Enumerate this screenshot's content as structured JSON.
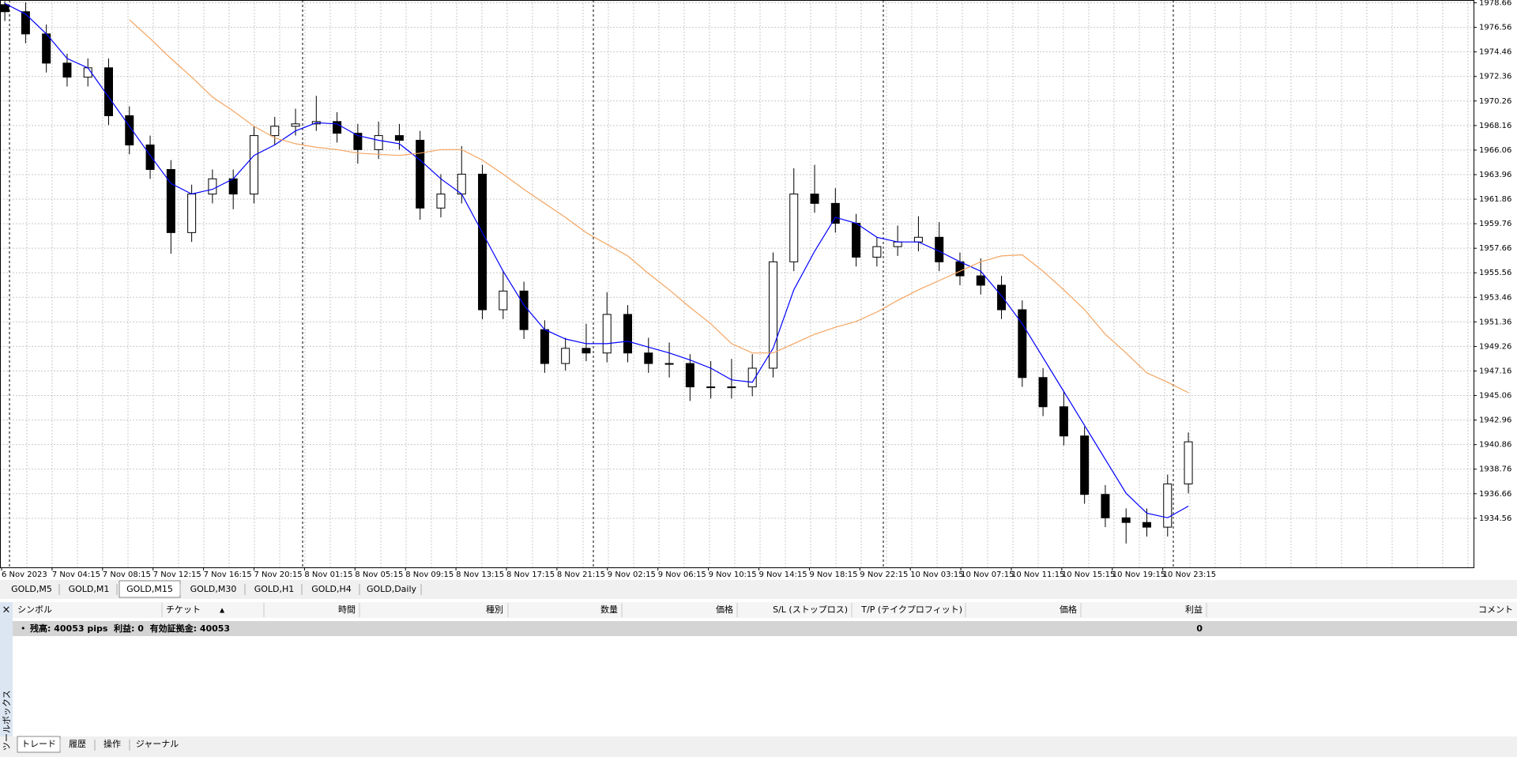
{
  "chart_data": {
    "type": "candlestick",
    "x_tick_labels": [
      "6 Nov 2023",
      "7 Nov 04:15",
      "7 Nov 08:15",
      "7 Nov 12:15",
      "7 Nov 16:15",
      "7 Nov 20:15",
      "8 Nov 01:15",
      "8 Nov 05:15",
      "8 Nov 09:15",
      "8 Nov 13:15",
      "8 Nov 17:15",
      "8 Nov 21:15",
      "9 Nov 02:15",
      "9 Nov 06:15",
      "9 Nov 10:15",
      "9 Nov 14:15",
      "9 Nov 18:15",
      "9 Nov 22:15",
      "10 Nov 03:15",
      "10 Nov 07:15",
      "10 Nov 11:15",
      "10 Nov 15:15",
      "10 Nov 19:15",
      "10 Nov 23:15"
    ],
    "open": [
      1978.5,
      1977.9,
      1976.0,
      1973.5,
      1972.3,
      1973.1,
      1969.0,
      1966.5,
      1964.4,
      1959.0,
      1962.3,
      1963.6,
      1962.3,
      1967.3,
      1968.1,
      1968.3,
      1968.5,
      1967.5,
      1966.1,
      1967.3,
      1966.9,
      1961.1,
      1962.3,
      1964.0,
      1952.4,
      1954.0,
      1950.7,
      1947.8,
      1949.1,
      1948.7,
      1952.0,
      1948.7,
      1947.8,
      1947.8,
      1945.8,
      1945.8,
      1945.8,
      1947.4,
      1956.5,
      1962.3,
      1961.5,
      1959.8,
      1956.9,
      1957.8,
      1958.2,
      1958.6,
      1956.5,
      1955.3,
      1954.5,
      1952.4,
      1946.6,
      1944.1,
      1941.6,
      1936.6,
      1934.6,
      1934.2,
      1933.8,
      1937.5
    ],
    "high": [
      1978.8,
      1978.7,
      1976.8,
      1974.3,
      1973.9,
      1973.9,
      1969.8,
      1967.3,
      1965.2,
      1963.1,
      1964.4,
      1964.4,
      1968.1,
      1968.9,
      1969.6,
      1970.7,
      1969.3,
      1968.3,
      1968.5,
      1968.3,
      1967.7,
      1964.0,
      1966.4,
      1964.8,
      1955.7,
      1954.8,
      1951.5,
      1950.0,
      1951.2,
      1953.9,
      1952.8,
      1950.0,
      1949.6,
      1948.6,
      1948.0,
      1948.2,
      1948.6,
      1957.3,
      1964.5,
      1964.8,
      1962.8,
      1960.6,
      1958.6,
      1959.6,
      1960.4,
      1959.9,
      1957.3,
      1956.8,
      1955.3,
      1953.2,
      1947.4,
      1945.4,
      1942.4,
      1937.4,
      1935.4,
      1935.4,
      1938.3,
      1941.9
    ],
    "low": [
      1977.1,
      1975.2,
      1972.7,
      1971.5,
      1971.5,
      1968.2,
      1965.7,
      1963.6,
      1957.2,
      1958.2,
      1961.5,
      1961.0,
      1961.5,
      1966.5,
      1967.3,
      1967.7,
      1966.7,
      1964.9,
      1965.3,
      1966.1,
      1960.1,
      1960.3,
      1961.5,
      1951.6,
      1951.6,
      1949.9,
      1947.0,
      1947.2,
      1948.0,
      1947.9,
      1947.9,
      1947.0,
      1946.6,
      1944.6,
      1944.8,
      1944.8,
      1945.0,
      1946.6,
      1955.7,
      1960.7,
      1959.0,
      1956.1,
      1956.1,
      1957.0,
      1957.4,
      1955.7,
      1954.5,
      1953.7,
      1951.6,
      1945.8,
      1943.3,
      1940.8,
      1935.8,
      1933.8,
      1932.4,
      1933.0,
      1933.0,
      1936.7
    ],
    "close": [
      1977.9,
      1976.0,
      1973.5,
      1972.3,
      1973.1,
      1969.0,
      1966.5,
      1964.4,
      1959.0,
      1962.3,
      1963.6,
      1962.3,
      1967.3,
      1968.1,
      1968.3,
      1968.5,
      1967.5,
      1966.1,
      1967.3,
      1966.9,
      1961.1,
      1962.3,
      1964.0,
      1952.4,
      1954.0,
      1950.7,
      1947.8,
      1949.1,
      1948.7,
      1952.0,
      1948.7,
      1947.8,
      1947.8,
      1945.8,
      1945.8,
      1945.8,
      1947.4,
      1956.5,
      1962.3,
      1961.5,
      1959.8,
      1956.9,
      1957.8,
      1958.2,
      1958.6,
      1956.5,
      1955.3,
      1954.5,
      1952.4,
      1946.6,
      1944.1,
      1941.6,
      1936.6,
      1934.6,
      1934.2,
      1933.8,
      1937.5,
      1941.1
    ],
    "series": [
      {
        "color": "#0000ff",
        "values": [
          1978.6,
          1977.7,
          1976.0,
          1973.9,
          1973.1,
          1970.6,
          1968.1,
          1965.6,
          1963.2,
          1962.3,
          1962.7,
          1963.6,
          1965.6,
          1966.5,
          1967.7,
          1968.4,
          1968.3,
          1967.3,
          1966.9,
          1966.6,
          1965.2,
          1963.6,
          1962.3,
          1959.0,
          1955.7,
          1952.8,
          1950.7,
          1949.9,
          1949.5,
          1949.5,
          1949.7,
          1949.2,
          1948.7,
          1948.1,
          1947.4,
          1946.4,
          1946.2,
          1949.1,
          1954.1,
          1957.4,
          1960.3,
          1959.8,
          1958.6,
          1958.2,
          1958.2,
          1957.4,
          1956.5,
          1955.7,
          1953.6,
          1951.2,
          1948.3,
          1945.4,
          1942.5,
          1939.6,
          1936.7,
          1935.0,
          1934.6,
          1935.6
        ]
      },
      {
        "color": "#f4a460",
        "values": [
          null,
          null,
          null,
          null,
          null,
          null,
          1977.2,
          1975.6,
          1973.9,
          1972.3,
          1970.6,
          1969.4,
          1968.1,
          1967.1,
          1966.6,
          1966.3,
          1966.1,
          1965.8,
          1965.7,
          1965.6,
          1965.8,
          1966.1,
          1966.1,
          1965.2,
          1964.0,
          1962.7,
          1961.5,
          1960.3,
          1959.0,
          1958.0,
          1957.0,
          1955.5,
          1954.1,
          1952.6,
          1951.2,
          1949.5,
          1948.7,
          1948.7,
          1949.5,
          1950.3,
          1950.9,
          1951.4,
          1952.2,
          1953.2,
          1954.1,
          1954.9,
          1955.7,
          1956.5,
          1957.0,
          1957.1,
          1955.7,
          1954.1,
          1952.4,
          1950.3,
          1948.7,
          1947.0,
          1946.2,
          1945.3
        ]
      }
    ],
    "ylim": [
      1930.36,
      1978.9
    ],
    "yticks": [
      1978.66,
      1976.56,
      1974.46,
      1972.36,
      1970.26,
      1968.16,
      1966.06,
      1963.96,
      1961.86,
      1959.76,
      1957.66,
      1955.56,
      1953.46,
      1951.36,
      1949.26,
      1947.16,
      1945.06,
      1942.96,
      1940.86,
      1938.76,
      1936.66,
      1934.56
    ],
    "grid": true
  },
  "symbol_tabs": [
    "GOLD,M5",
    "GOLD,M1",
    "GOLD,M15",
    "GOLD,M30",
    "GOLD,H1",
    "GOLD,H4",
    "GOLD,Daily"
  ],
  "toolbox": {
    "columns": [
      "シンボル",
      "チケット",
      "時間",
      "種別",
      "数量",
      "価格",
      "S/L (ストップロス)",
      "T/P (テイクプロフィット)",
      "価格",
      "利益",
      "コメント"
    ],
    "account_row": {
      "summary": "残高: 40053 pips  利益: 0  有効証拠金: 40053",
      "profit": 0
    },
    "tabs": [
      "トレード",
      "履歴",
      "操作",
      "ジャーナル"
    ],
    "side_label": "ツールボックス"
  }
}
